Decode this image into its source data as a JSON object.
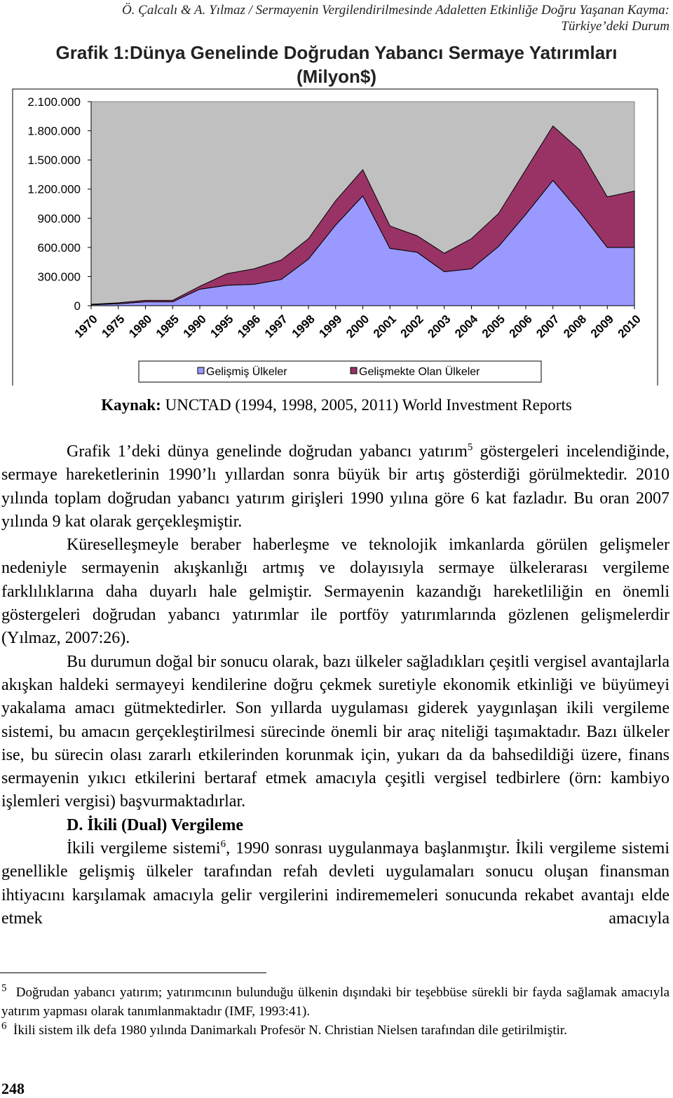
{
  "header": {
    "line1": "Ö. Çalcalı & A. Yılmaz / Sermayenin Vergilendirilmesinde Adaletten Etkinliğe Doğru Yaşanan Kayma:",
    "line2": "Türkiye’deki Durum"
  },
  "chart_data": {
    "type": "area",
    "stacked": true,
    "title": "Grafik 1:Dünya Genelinde Doğrudan Yabancı Sermaye Yatırımları (Milyon$)",
    "categories": [
      "1970",
      "1975",
      "1980",
      "1985",
      "1990",
      "1995",
      "1996",
      "1997",
      "1998",
      "1999",
      "2000",
      "2001",
      "2002",
      "2003",
      "2004",
      "2005",
      "2006",
      "2007",
      "2008",
      "2009",
      "2010"
    ],
    "series": [
      {
        "name": "Gelişmiş Ülkeler",
        "color": "#9999ff",
        "values": [
          10000,
          20000,
          40000,
          40000,
          170000,
          210000,
          220000,
          270000,
          480000,
          830000,
          1130000,
          590000,
          550000,
          350000,
          380000,
          610000,
          940000,
          1290000,
          960000,
          600000,
          600000
        ]
      },
      {
        "name": "Gelişmekte Olan Ülkeler",
        "color": "#993366",
        "values": [
          4000,
          10000,
          15000,
          15000,
          30000,
          120000,
          160000,
          200000,
          210000,
          250000,
          270000,
          230000,
          170000,
          190000,
          310000,
          340000,
          460000,
          560000,
          640000,
          520000,
          580000
        ]
      }
    ],
    "ylim": [
      0,
      2100000
    ],
    "yticks": [
      0,
      {
        "value": 300000,
        "label": "300.000"
      },
      {
        "value": 600000,
        "label": "600.000"
      },
      {
        "value": 900000,
        "label": "900.000"
      },
      {
        "value": 1200000,
        "label": "1.200.000"
      },
      {
        "value": 1500000,
        "label": "1.500.000"
      },
      {
        "value": 1800000,
        "label": "1.800.000"
      },
      {
        "value": 2100000,
        "label": "2.100.000"
      }
    ],
    "grid": false,
    "legend": "bottom"
  },
  "source": {
    "label": "Kaynak:",
    "text": "UNCTAD (1994, 1998, 2005, 2011) World Investment Reports"
  },
  "paragraphs": [
    {
      "text": "Grafik 1’deki dünya genelinde doğrudan yabancı yatırım",
      "footnote_ref": "5",
      "text_after": " göstergeleri incelendiğinde, sermaye hareketlerinin 1990’lı yıllardan sonra büyük bir artış gösterdiği görülmektedir. 2010 yılında toplam doğrudan yabancı yatırım girişleri 1990 yılına göre 6 kat fazladır. Bu oran 2007 yılında 9 kat olarak gerçekleşmiştir."
    },
    {
      "text": "Küreselleşmeyle beraber haberleşme ve teknolojik imkanlarda görülen gelişmeler nedeniyle sermayenin akışkanlığı artmış ve dolayısıyla sermaye ülkelerarası vergileme farklılıklarına daha duyarlı hale gelmiştir. Sermayenin kazandığı hareketliliğin en önemli göstergeleri doğrudan yabancı yatırımlar ile portföy yatırımlarında gözlenen gelişmelerdir (Yılmaz, 2007:26)."
    },
    {
      "text": "Bu durumun doğal bir sonucu olarak, bazı ülkeler sağladıkları çeşitli vergisel avantajlarla akışkan haldeki sermayeyi kendilerine doğru çekmek suretiyle ekonomik etkinliği ve büyümeyi yakalama amacı gütmektedirler. Son yıllarda uygulaması giderek yaygınlaşan ikili vergileme sistemi, bu amacın gerçekleştirilmesi sürecinde önemli bir araç niteliği taşımaktadır. Bazı ülkeler ise, bu sürecin olası zararlı etkilerinden korunmak için, yukarı da da bahsedildiği üzere, finans sermayenin yıkıcı etkilerini bertaraf etmek amacıyla çeşitli vergisel tedbirlere (örn: kambiyo işlemleri vergisi) başvurmaktadırlar."
    }
  ],
  "section": {
    "heading": "D. İkili (Dual) Vergileme",
    "paragraph": {
      "text": "İkili vergileme sistemi",
      "footnote_ref": "6",
      "text_after": ", 1990 sonrası uygulanmaya başlanmıştır. İkili vergileme sistemi genellikle gelişmiş ülkeler tarafından refah devleti uygulamaları sonucu oluşan finansman ihtiyacını karşılamak amacıyla gelir vergilerini indirememeleri sonucunda rekabet avantajı elde etmek amacıyla"
    }
  },
  "footnotes": [
    {
      "number": "5",
      "text": "Doğrudan yabancı yatırım; yatırımcının bulunduğu ülkenin dışındaki bir teşebbüse sürekli bir fayda sağlamak amacıyla yatırım yapması olarak tanımlanmaktadır (IMF, 1993:41)."
    },
    {
      "number": "6",
      "text": "İkili sistem ilk defa 1980 yılında Danimarkalı Profesör N. Christian Nielsen tarafından dile getirilmiştir."
    }
  ],
  "page_number": "248"
}
